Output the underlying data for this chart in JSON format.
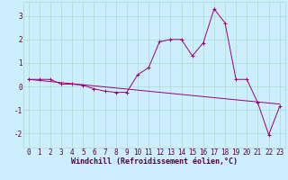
{
  "xlabel": "Windchill (Refroidissement éolien,°C)",
  "background_color": "#cceeff",
  "grid_color": "#aaddcc",
  "line_color": "#990077",
  "x_ticks": [
    0,
    1,
    2,
    3,
    4,
    5,
    6,
    7,
    8,
    9,
    10,
    11,
    12,
    13,
    14,
    15,
    16,
    17,
    18,
    19,
    20,
    21,
    22,
    23
  ],
  "ylim": [
    -2.6,
    3.6
  ],
  "xlim": [
    -0.5,
    23.5
  ],
  "series1_y": [
    0.3,
    0.3,
    0.3,
    0.1,
    0.1,
    0.05,
    -0.1,
    -0.2,
    -0.25,
    -0.25,
    0.5,
    0.8,
    1.9,
    2.0,
    2.0,
    1.3,
    1.85,
    3.3,
    2.7,
    0.3,
    0.3,
    -0.7,
    -2.05,
    -0.85
  ],
  "trend_x": [
    0,
    23
  ],
  "trend_y": [
    0.3,
    -0.75
  ],
  "yticks": [
    -2,
    -1,
    0,
    1,
    2,
    3
  ],
  "tick_fontsize": 5.5,
  "axis_fontsize": 6.0
}
